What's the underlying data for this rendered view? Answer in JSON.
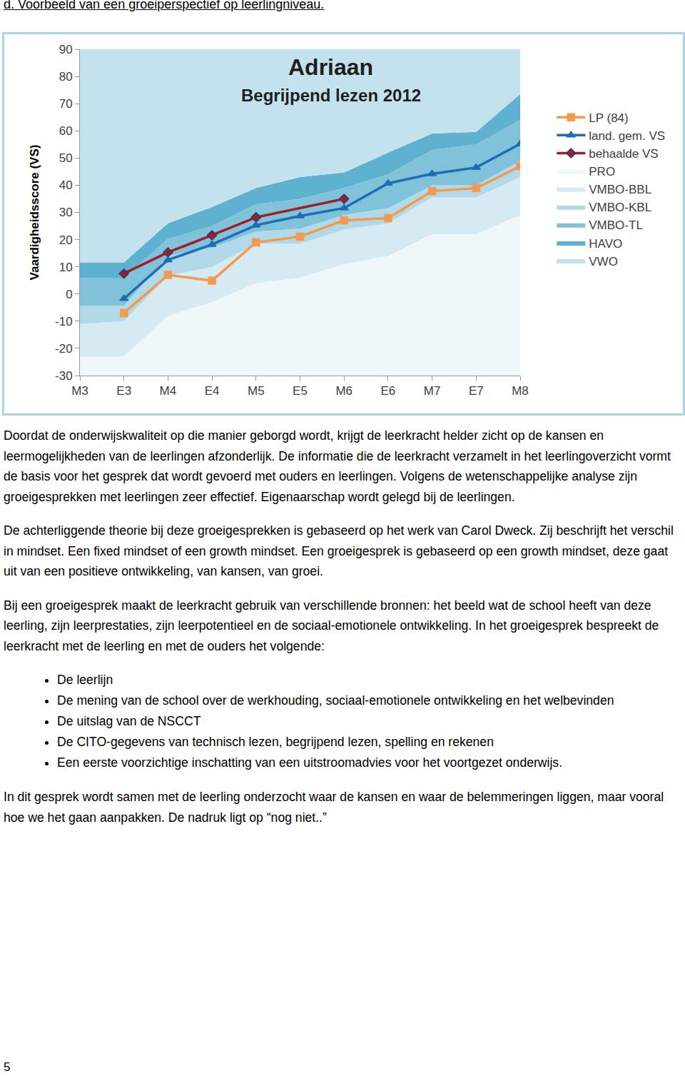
{
  "heading": "d. Voorbeeld van een groeiperspectief op leerlingniveau.",
  "chart_data": {
    "type": "area",
    "title": "Adriaan",
    "subtitle": "Begrijpend lezen 2012",
    "y_label": "Vaardigheidsscore (VS)",
    "categories": [
      "M3",
      "E3",
      "M4",
      "E4",
      "M5",
      "E5",
      "M6",
      "E6",
      "M7",
      "E7",
      "M8"
    ],
    "bands": [
      {
        "name": "PRO",
        "color": "#eff7fa",
        "values": [
          -23,
          -23,
          -8,
          -3,
          4,
          6,
          11,
          14,
          22,
          22,
          29
        ]
      },
      {
        "name": "VMBO-BBL",
        "color": "#d5eaf3",
        "values": [
          -11,
          -10,
          6.7,
          10,
          18.5,
          18.5,
          23.7,
          26,
          35.5,
          35.5,
          43
        ]
      },
      {
        "name": "VMBO-KBL",
        "color": "#b2d9e8",
        "values": [
          -4.3,
          -4.3,
          14,
          17,
          23,
          24,
          29,
          31.6,
          40,
          40,
          49
        ]
      },
      {
        "name": "VMBO-TL",
        "color": "#80c2da",
        "values": [
          6,
          6,
          20.3,
          25,
          33,
          35,
          39,
          44,
          53,
          55,
          64
        ]
      },
      {
        "name": "HAVO",
        "color": "#5fb2cf",
        "values": [
          11.6,
          11.6,
          26,
          32,
          39,
          43,
          44.7,
          52,
          59,
          59.6,
          73.5
        ]
      },
      {
        "name": "VWO",
        "color": "#c4e2ed",
        "values": [
          90,
          90,
          90,
          90,
          90,
          90,
          90,
          90,
          90,
          90,
          90
        ]
      }
    ],
    "series": [
      {
        "name": "behaalde VS",
        "color": "#a51d24",
        "marker": "diamond",
        "line_style": "solid",
        "values": [
          null,
          7.5,
          15.3,
          21.6,
          28.2,
          null,
          35,
          null,
          null,
          null,
          null
        ]
      },
      {
        "name": "land. gem. VS",
        "color": "#1f6db3",
        "marker": "triangle-up",
        "line_style": "solid",
        "values": [
          null,
          -1.7,
          12.5,
          18.2,
          25.3,
          28.7,
          31.6,
          40.7,
          44.2,
          46.5,
          55.2
        ]
      },
      {
        "name": "LP (84)",
        "color": "#f39a4e",
        "marker": "square",
        "line_style": "solid",
        "values": [
          null,
          -7,
          7,
          4.9,
          19,
          21.1,
          27.1,
          27.9,
          37.9,
          38.9,
          47
        ]
      }
    ],
    "ylim": [
      -30,
      90
    ],
    "yticks": [
      -30,
      -20,
      -10,
      0,
      10,
      20,
      30,
      40,
      50,
      60,
      70,
      80,
      90
    ],
    "grid": false,
    "legend": "right"
  },
  "paragraphs": [
    "Doordat de onderwijskwaliteit op die manier geborgd wordt, krijgt de leerkracht helder zicht op de kansen en leermogelijkheden van de leerlingen afzonderlijk. De informatie die de leerkracht verzamelt in het leerlingoverzicht vormt de basis voor het gesprek dat wordt gevoerd met ouders en leerlingen. Volgens de wetenschappelijke analyse  zijn groeigesprekken met leerlingen zeer effectief. Eigenaarschap wordt gelegd bij de leerlingen.",
    "De achterliggende theorie bij deze groeigesprekken is gebaseerd op het werk van Carol Dweck. Zij beschrijft het verschil in mindset. Een fixed mindset of een growth mindset. Een groeigesprek is gebaseerd op een growth mindset, deze gaat uit van een positieve ontwikkeling, van kansen, van groei.",
    "Bij een groeigesprek maakt de leerkracht gebruik van verschillende bronnen: het beeld wat de school heeft van deze leerling, zijn leerprestaties, zijn leerpotentieel en de sociaal-emotionele ontwikkeling. In het groeigesprek bespreekt de leerkracht met de leerling en met de ouders het volgende:"
  ],
  "bullets": [
    "De leerlijn",
    "De mening van de school over de werkhouding, sociaal-emotionele ontwikkeling en het welbevinden",
    "De uitslag van de NSCCT",
    "De CITO-gegevens van technisch lezen, begrijpend lezen, spelling en rekenen",
    "Een eerste voorzichtige inschatting van een uitstroomadvies voor het voortgezet onderwijs."
  ],
  "closing": "In dit gesprek wordt samen met de leerling onderzocht waar de kansen en waar de belemmeringen liggen, maar vooral hoe we het gaan aanpakken.  De nadruk ligt op “nog niet..”",
  "page_number": "5"
}
